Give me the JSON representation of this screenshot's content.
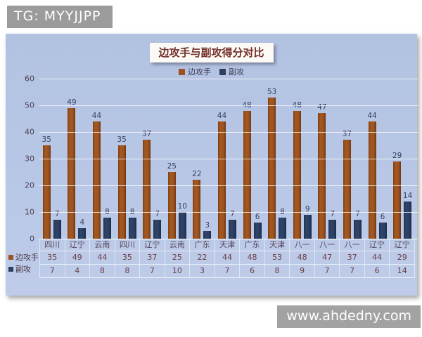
{
  "overlays": {
    "tg_badge": "TG: MYYJJPP",
    "site_badge": "www.ahdedny.com"
  },
  "chart_data": {
    "type": "bar",
    "title": "边攻手与副攻得分对比",
    "categories": [
      "四川",
      "辽宁",
      "云南",
      "四川",
      "辽宁",
      "云南",
      "广东",
      "天津",
      "广东",
      "天津",
      "八一",
      "八一",
      "八一",
      "辽宁",
      "辽宁"
    ],
    "series": [
      {
        "name": "边攻手",
        "color": "#9c5320",
        "values": [
          35,
          49,
          44,
          35,
          37,
          25,
          22,
          44,
          48,
          53,
          48,
          47,
          37,
          44,
          29
        ]
      },
      {
        "name": "副攻",
        "color": "#2b3f63",
        "values": [
          7,
          4,
          8,
          8,
          7,
          10,
          3,
          7,
          6,
          8,
          9,
          7,
          7,
          6,
          14
        ]
      }
    ],
    "ylim": [
      0,
      60
    ],
    "yticks": [
      0,
      10,
      20,
      30,
      40,
      50,
      60
    ],
    "grid": true,
    "legend_position": "top",
    "data_table_shown": true,
    "panel_background": "#b8c7e6",
    "gridline_color": "#ffffff"
  }
}
